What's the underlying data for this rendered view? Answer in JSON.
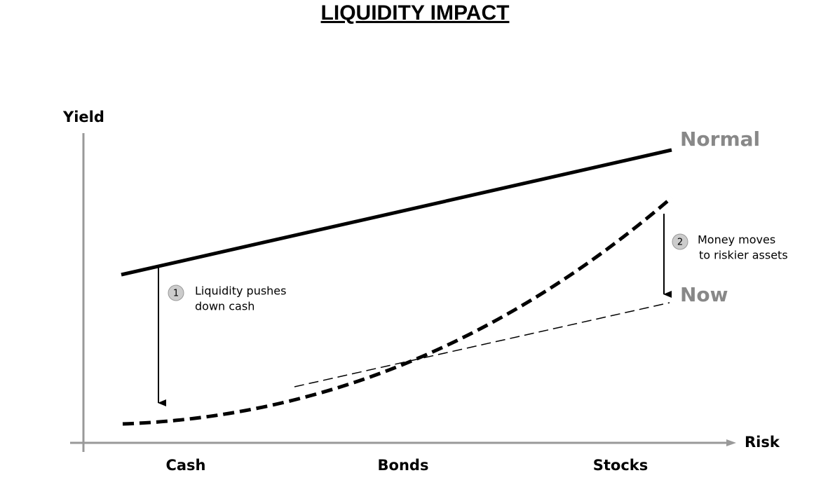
{
  "title": "LIQUIDITY IMPACT",
  "axes": {
    "y_label": "Yield",
    "x_label": "Risk"
  },
  "categories": [
    "Cash",
    "Bonds",
    "Stocks"
  ],
  "curves": {
    "normal": "Normal",
    "now": "Now"
  },
  "annotations": [
    {
      "number": "1",
      "lines": [
        "Liquidity pushes",
        "down cash"
      ]
    },
    {
      "number": "2",
      "lines": [
        "Money moves",
        "to riskier assets"
      ]
    }
  ]
}
